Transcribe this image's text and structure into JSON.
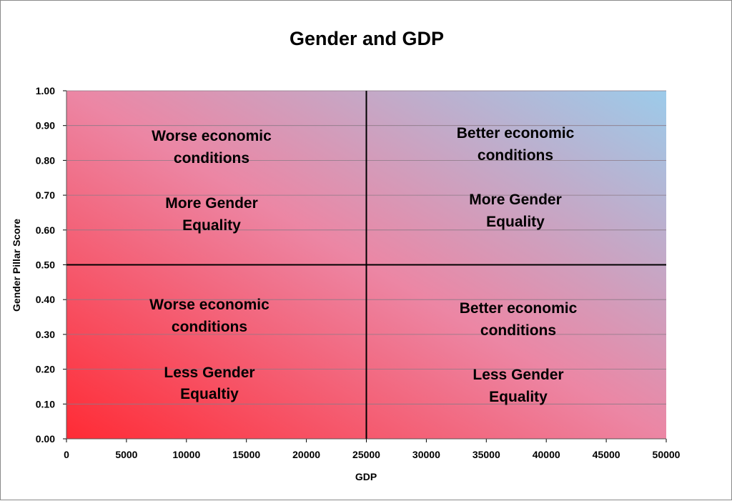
{
  "chart_data": {
    "type": "scatter",
    "title": "Gender and GDP",
    "xlabel": "GDP",
    "ylabel": "Gender Pillar Score",
    "xlim": [
      0,
      50000
    ],
    "ylim": [
      0,
      1
    ],
    "x_ticks": [
      "0",
      "5000",
      "10000",
      "15000",
      "20000",
      "25000",
      "30000",
      "35000",
      "40000",
      "45000",
      "50000"
    ],
    "y_ticks": [
      "0.00",
      "0.10",
      "0.20",
      "0.30",
      "0.40",
      "0.50",
      "0.60",
      "0.70",
      "0.80",
      "0.90",
      "1.00"
    ],
    "grid": "horizontal",
    "background_gradient": [
      "#ff2b35",
      "#9ccbea"
    ],
    "divider_x": 25000,
    "divider_y": 0.5,
    "annotations": [
      {
        "quadrant": "top-left",
        "lines": [
          "Worse economic",
          "conditions",
          "More Gender",
          "Equality"
        ]
      },
      {
        "quadrant": "top-right",
        "lines": [
          "Better economic",
          "conditions",
          "More Gender",
          "Equality"
        ]
      },
      {
        "quadrant": "bottom-left",
        "lines": [
          "Worse economic",
          "conditions",
          "Less Gender",
          "Equaltiy"
        ]
      },
      {
        "quadrant": "bottom-right",
        "lines": [
          "Better economic",
          "conditions",
          "Less Gender",
          "Equality"
        ]
      }
    ]
  }
}
